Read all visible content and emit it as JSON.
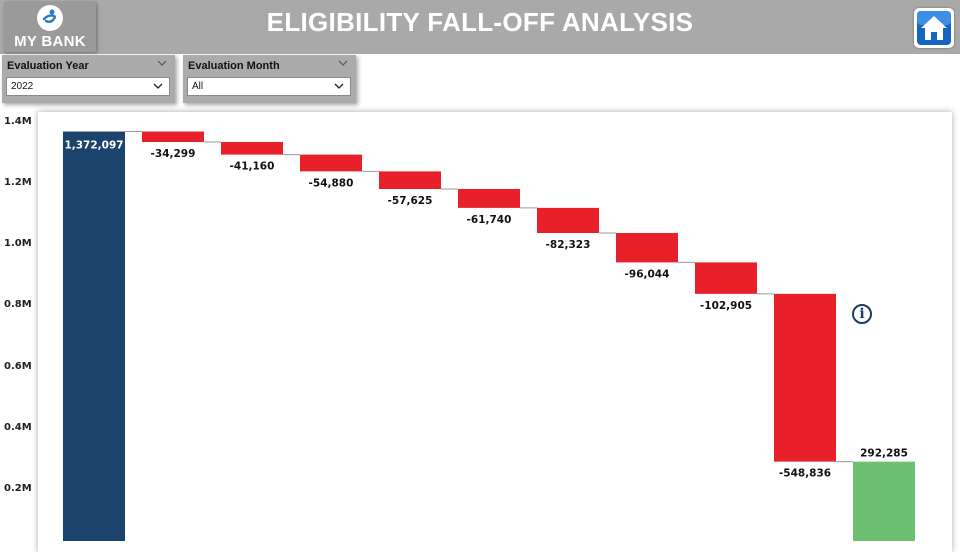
{
  "header": {
    "title": "ELIGIBILITY FALL-OFF ANALYSIS",
    "logo_text": "MY BANK",
    "bg_color": "#a9a9a9"
  },
  "slicers": {
    "year": {
      "label": "Evaluation Year",
      "value": "2022"
    },
    "month": {
      "label": "Evaluation Month",
      "value": "All"
    }
  },
  "colors": {
    "total": "#1b436c",
    "decrease": "#e8202a",
    "ending": "#6dbf72",
    "home_button": "#1565c0"
  },
  "chart_data": {
    "type": "bar",
    "subtype": "waterfall",
    "title": "",
    "xlabel": "",
    "ylabel": "",
    "ylim": [
      0,
      1400000
    ],
    "yticks": [
      "1.4M",
      "1.2M",
      "1.0M",
      "0.8M",
      "0.6M",
      "0.4M",
      "0.2M"
    ],
    "ytick_values": [
      1400000,
      1200000,
      1000000,
      800000,
      600000,
      400000,
      200000
    ],
    "start": {
      "value": 1372097,
      "label": "1,372,097"
    },
    "steps": [
      {
        "value": -34299,
        "label": "-34,299"
      },
      {
        "value": -41160,
        "label": "-41,160"
      },
      {
        "value": -54880,
        "label": "-54,880"
      },
      {
        "value": -57625,
        "label": "-57,625"
      },
      {
        "value": -61740,
        "label": "-61,740"
      },
      {
        "value": -82323,
        "label": "-82,323"
      },
      {
        "value": -96044,
        "label": "-96,044"
      },
      {
        "value": -102905,
        "label": "-102,905"
      },
      {
        "value": -548836,
        "label": "-548,836"
      }
    ],
    "end": {
      "value": 292285,
      "label": "292,285"
    },
    "grid": false,
    "legend": "none"
  }
}
